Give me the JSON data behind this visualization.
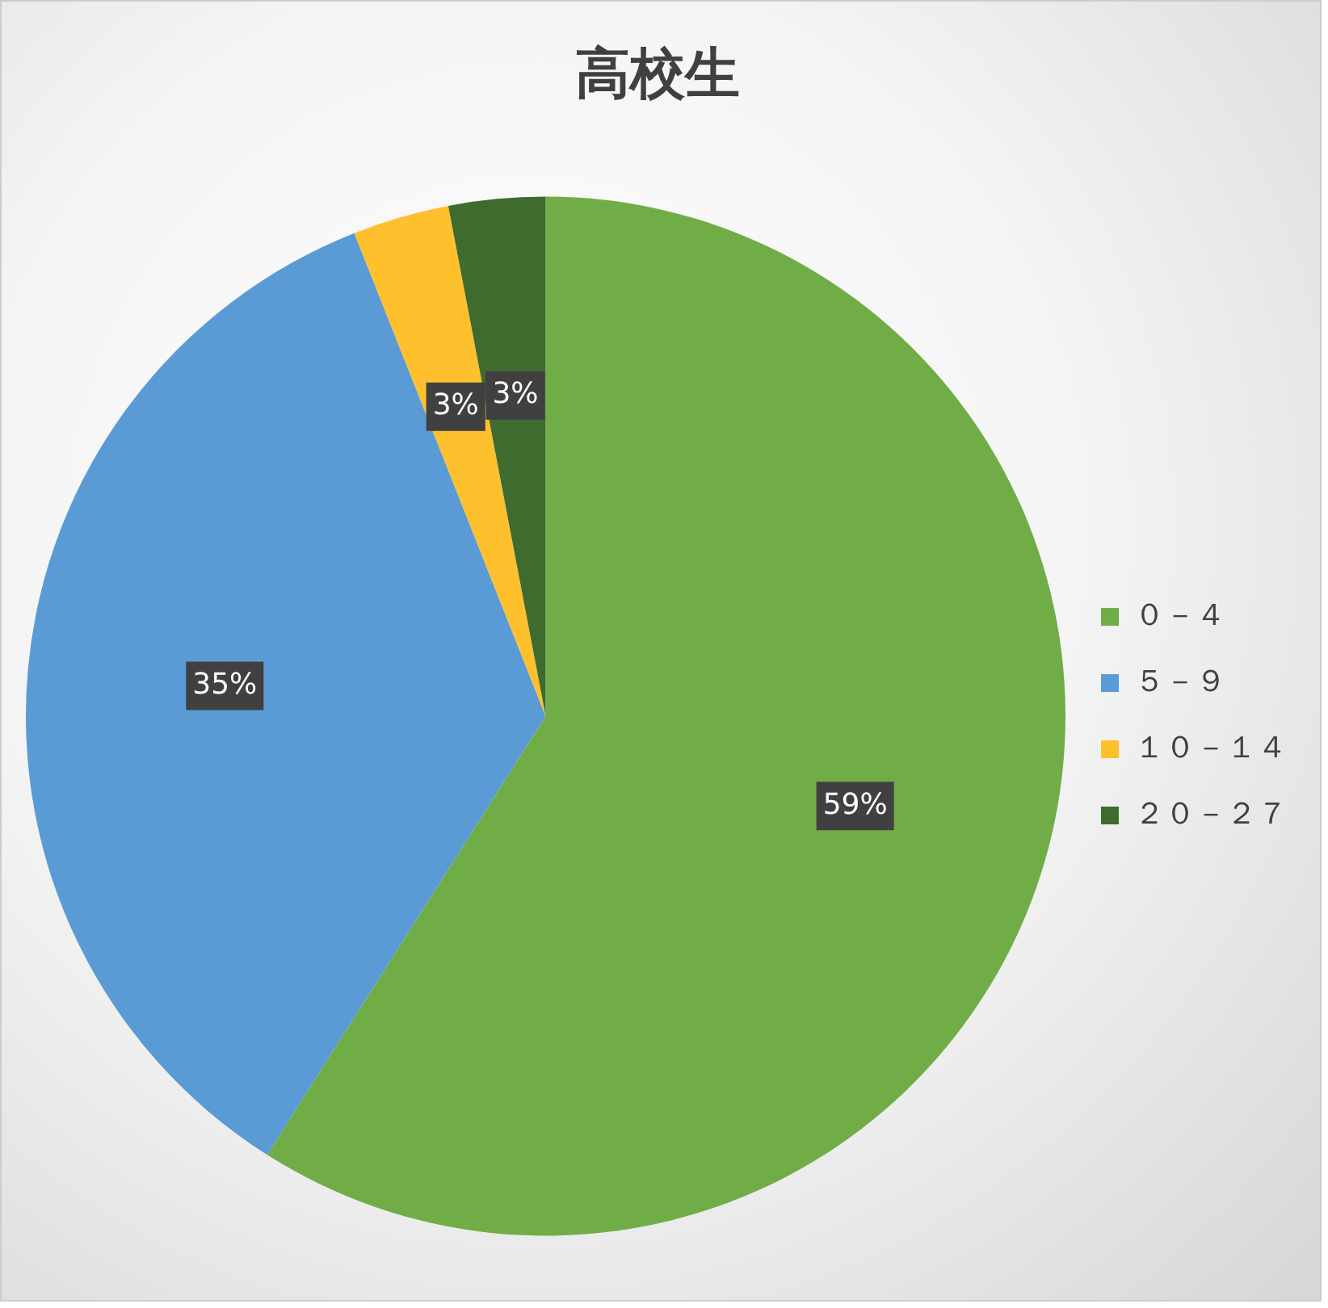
{
  "chart_data": {
    "type": "pie",
    "title": "高校生",
    "categories": [
      "０－４",
      "５－９",
      "１０－１４",
      "２０－２７"
    ],
    "values": [
      59,
      35,
      3,
      3
    ],
    "colors": [
      "#70ad47",
      "#5b9bd5",
      "#ffc02d",
      "#3f6b2e"
    ],
    "value_labels": [
      "59%",
      "35%",
      "3%",
      "3%"
    ],
    "legend": "right"
  }
}
